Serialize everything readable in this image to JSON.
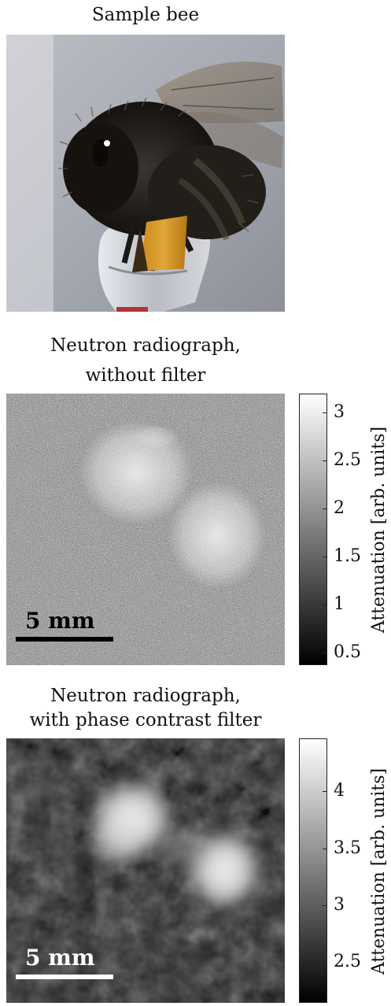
{
  "panels": [
    {
      "title": "Sample bee"
    },
    {
      "title_line1": "Neutron radiograph,",
      "title_line2": "without filter",
      "scale_label": "5 mm",
      "colorbar": {
        "label": "Attenuation [arb. units]",
        "ticks": [
          "3",
          "2.5",
          "2",
          "1.5",
          "1",
          "0.5"
        ]
      }
    },
    {
      "title_line1": "Neutron radiograph,",
      "title_line2": "with phase contrast filter",
      "scale_label": "5 mm",
      "colorbar": {
        "label": "Attenuation [arb. units]",
        "ticks": [
          "4",
          "3.5",
          "3",
          "2.5"
        ]
      }
    }
  ]
}
